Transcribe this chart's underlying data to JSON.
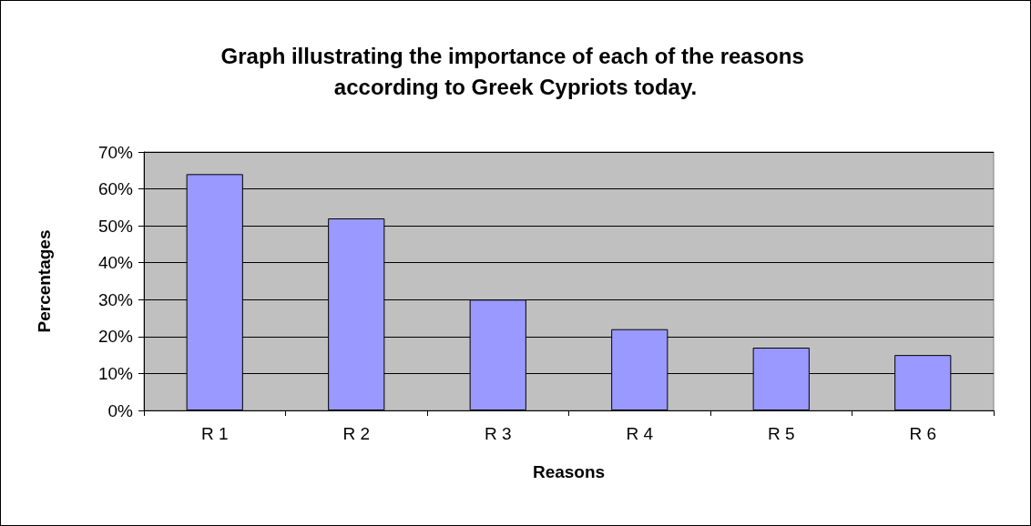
{
  "chart_data": {
    "type": "bar",
    "title": "Graph illustrating the importance of each of the reasons according to Greek Cypriots today.",
    "xlabel": "Reasons",
    "ylabel": "Percentages",
    "categories": [
      "R 1",
      "R 2",
      "R 3",
      "R 4",
      "R 5",
      "R 6"
    ],
    "values": [
      64,
      52,
      30,
      22,
      17,
      15
    ],
    "color": "#9999ff",
    "ylim": [
      0,
      70
    ],
    "yticks": [
      {
        "value": 0,
        "label": "0%"
      },
      {
        "value": 10,
        "label": "10%"
      },
      {
        "value": 20,
        "label": "20%"
      },
      {
        "value": 30,
        "label": "30%"
      },
      {
        "value": 40,
        "label": "40%"
      },
      {
        "value": 50,
        "label": "50%"
      },
      {
        "value": 60,
        "label": "60%"
      },
      {
        "value": 70,
        "label": "70%"
      }
    ],
    "grid": "y"
  }
}
